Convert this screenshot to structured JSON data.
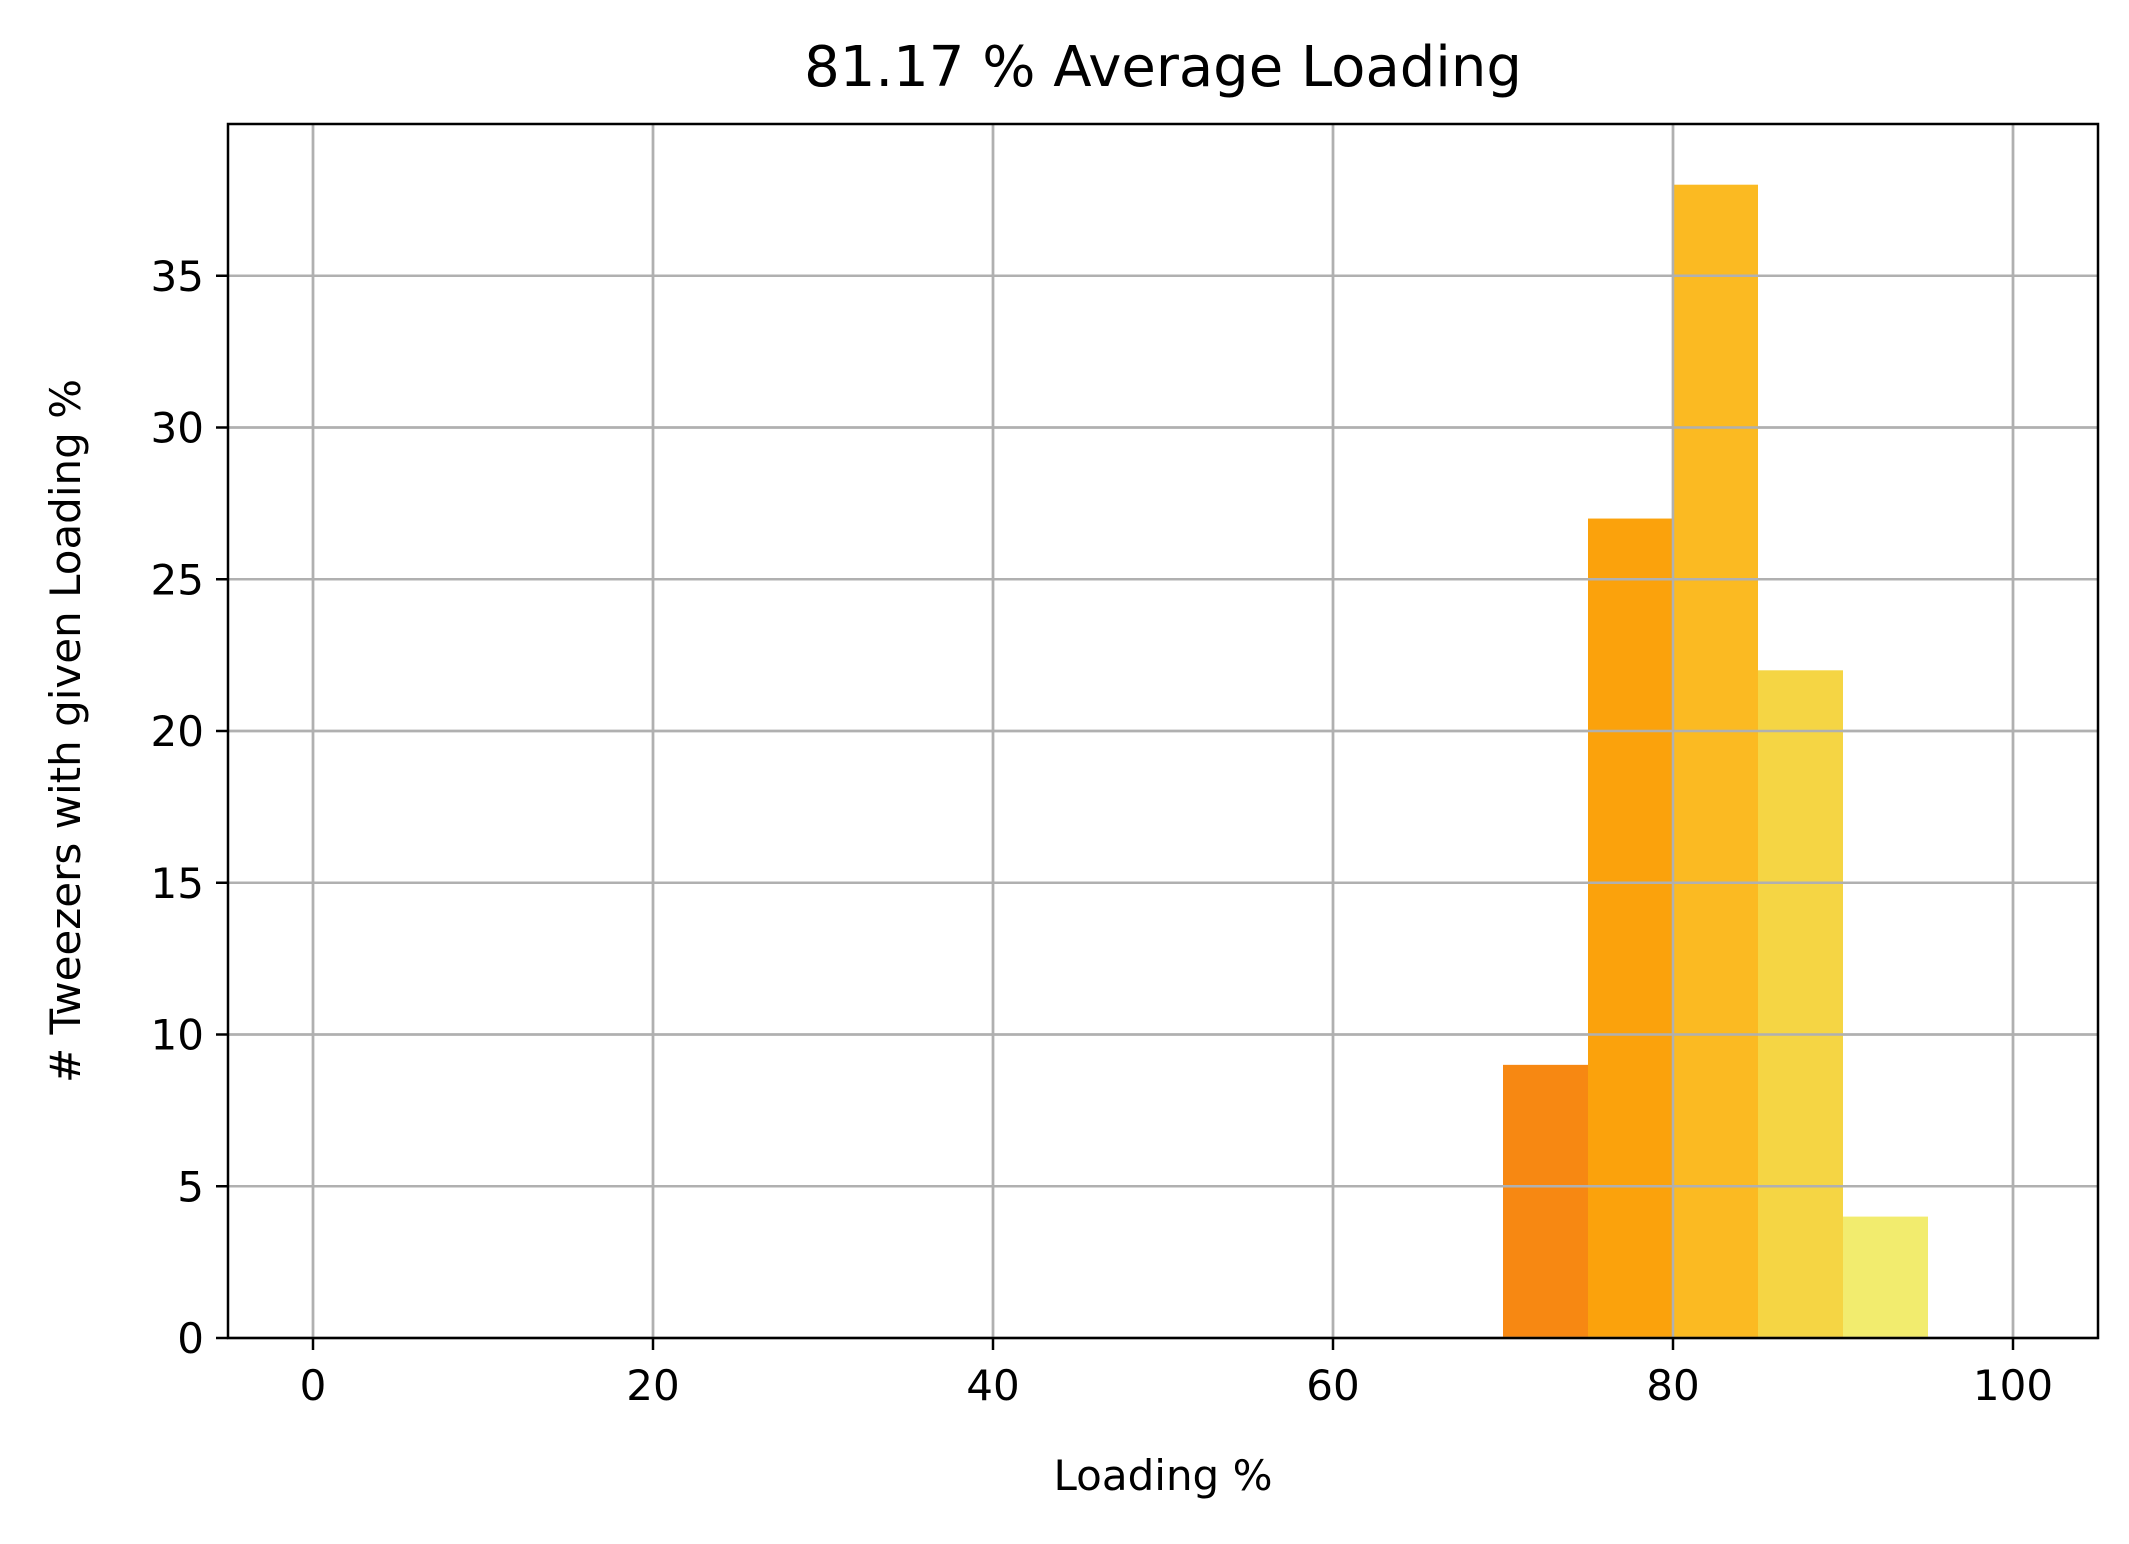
{
  "chart_data": {
    "type": "bar",
    "title": "81.17 % Average Loading",
    "xlabel": "Loading %",
    "ylabel": "# Tweezers with given Loading %",
    "xlim": [
      -5,
      105
    ],
    "ylim": [
      0,
      40
    ],
    "x_ticks": [
      0,
      20,
      40,
      60,
      80,
      100
    ],
    "y_ticks": [
      0,
      5,
      10,
      15,
      20,
      25,
      30,
      35
    ],
    "grid": true,
    "bins": [
      {
        "start": 70,
        "end": 75,
        "value": 9,
        "color": "#f78812"
      },
      {
        "start": 75,
        "end": 80,
        "value": 27,
        "color": "#fba20c"
      },
      {
        "start": 80,
        "end": 85,
        "value": 38,
        "color": "#fbba22"
      },
      {
        "start": 85,
        "end": 90,
        "value": 22,
        "color": "#f5d544"
      },
      {
        "start": 90,
        "end": 95,
        "value": 4,
        "color": "#f2ec6e"
      }
    ]
  }
}
